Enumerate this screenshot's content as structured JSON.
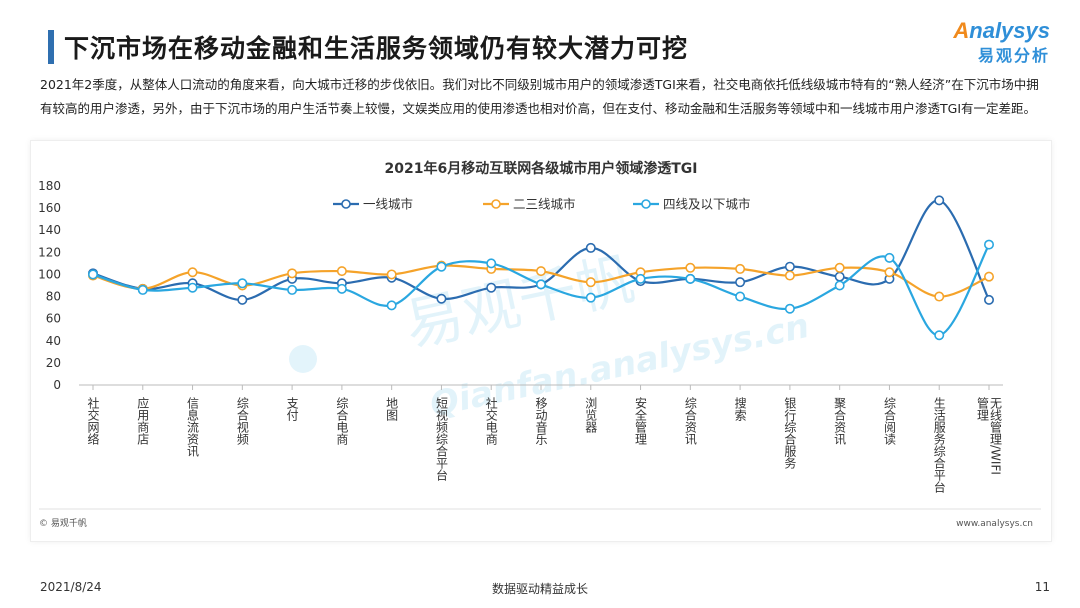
{
  "page": {
    "title": "下沉市场在移动金融和生活服务领域仍有较大潜力可挖",
    "intro": "2021年2季度，从整体人口流动的角度来看，向大城市迁移的步伐依旧。我们对比不同级别城市用户的领域渗透TGI来看，社交电商依托低线级城市特有的“熟人经济”在下沉市场中拥有较高的用户渗透，另外，由于下沉市场的用户生活节奏上较慢，文娱类应用的使用渗透也相对价高，但在支付、移动金融和生活服务等领域中和一线城市用户渗透TGI有一定差距。"
  },
  "logo": {
    "en": "nalysys",
    "en_prefix": "A",
    "cn": "易观分析"
  },
  "watermark": {
    "cn": "易观千帆",
    "en": "Qianfan.analysys.cn"
  },
  "chart_source": {
    "left": "© 易观千帆",
    "right": "www.analysys.cn"
  },
  "footer": {
    "date": "2021/8/24",
    "center": "数据驱动精益成长",
    "page_number": "11"
  },
  "colors": {
    "tier1": "#2b6cb0",
    "tier23": "#f5a32a",
    "tier4": "#2aa7e0",
    "accent": "#2f6fb0"
  },
  "chart_data": {
    "type": "line",
    "title": "2021年6月移动互联网各级城市用户领域渗透TGI",
    "smooth": true,
    "ylim": [
      0,
      180
    ],
    "yticks": [
      0,
      20,
      40,
      60,
      80,
      100,
      120,
      140,
      160,
      180
    ],
    "grid": false,
    "legend_position": "top",
    "categories": [
      "社交网络",
      "应用商店",
      "信息流资讯",
      "综合视频",
      "支付",
      "综合电商",
      "地图",
      "短视频综合平台",
      "社交电商",
      "移动音乐",
      "浏览器",
      "安全管理",
      "综合资讯",
      "搜索",
      "银行综合服务",
      "聚合资讯",
      "综合阅读",
      "生活服务综合平台",
      "无线管理/WIFI管理"
    ],
    "series": [
      {
        "name": "一线城市",
        "values": [
          101,
          87,
          92,
          77,
          96,
          92,
          97,
          78,
          88,
          91,
          124,
          94,
          96,
          93,
          107,
          98,
          96,
          167,
          77
        ]
      },
      {
        "name": "二三线城市",
        "values": [
          99,
          87,
          102,
          90,
          101,
          103,
          100,
          108,
          105,
          103,
          93,
          102,
          106,
          105,
          99,
          106,
          102,
          80,
          98
        ]
      },
      {
        "name": "四线及以下城市",
        "values": [
          100,
          86,
          88,
          92,
          86,
          87,
          72,
          107,
          110,
          91,
          79,
          96,
          96,
          80,
          69,
          90,
          115,
          45,
          127
        ]
      }
    ]
  }
}
